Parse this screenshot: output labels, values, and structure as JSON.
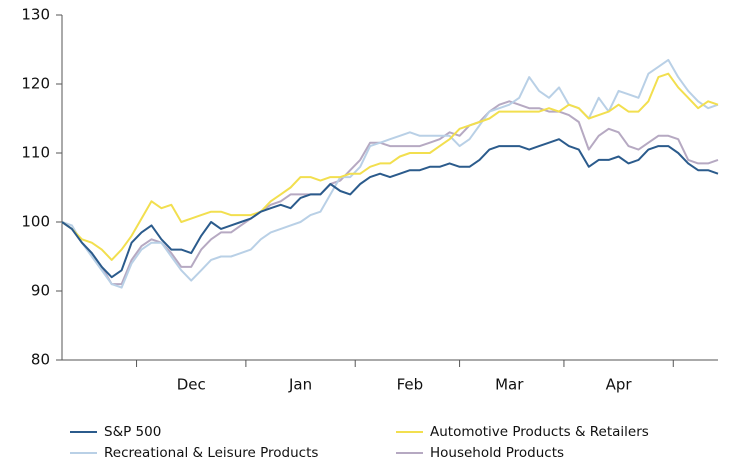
{
  "chart_data": {
    "type": "line",
    "categories": [
      null,
      null,
      null,
      null,
      null,
      null,
      null,
      null,
      null,
      null,
      null,
      null,
      null,
      "Dec",
      null,
      null,
      null,
      null,
      null,
      null,
      null,
      null,
      null,
      null,
      "Jan",
      null,
      null,
      null,
      null,
      null,
      null,
      null,
      null,
      null,
      null,
      "Feb",
      null,
      null,
      null,
      null,
      null,
      null,
      null,
      null,
      null,
      "Mar",
      null,
      null,
      null,
      null,
      null,
      null,
      null,
      null,
      null,
      null,
      "Apr",
      null,
      null,
      null,
      null,
      null,
      null,
      null,
      null,
      null,
      null
    ],
    "ylim": [
      80,
      130
    ],
    "yticks": [
      80,
      90,
      100,
      110,
      120,
      130
    ],
    "grid": false,
    "series": [
      {
        "name": "S&P 500",
        "color": "#2b5b8c",
        "values": [
          100,
          99,
          97,
          95.5,
          93.5,
          92,
          93,
          97,
          98.5,
          99.5,
          97.5,
          96,
          96,
          95.5,
          98,
          100,
          99,
          99.5,
          100,
          100.5,
          101.5,
          102,
          102.5,
          102,
          103.5,
          104,
          104,
          105.5,
          104.5,
          104,
          105.5,
          106.5,
          107,
          106.5,
          107,
          107.5,
          107.5,
          108,
          108,
          108.5,
          108,
          108,
          109,
          110.5,
          111,
          111,
          111,
          110.5,
          111,
          111.5,
          112,
          111,
          110.5,
          108,
          109,
          109,
          109.5,
          108.5,
          109,
          110.5,
          111,
          111,
          110,
          108.5,
          107.5,
          107.5,
          107
        ]
      },
      {
        "name": "Automotive Products & Retailers",
        "color": "#f2df4f",
        "values": [
          100,
          99,
          97.5,
          97,
          96,
          94.5,
          96,
          98,
          100.5,
          103,
          102,
          102.5,
          100,
          100.5,
          101,
          101.5,
          101.5,
          101,
          101,
          101,
          101.5,
          103,
          104,
          105,
          106.5,
          106.5,
          106,
          106.5,
          106.5,
          107,
          107,
          108,
          108.5,
          108.5,
          109.5,
          110,
          110,
          110,
          111,
          112,
          113.5,
          114,
          114.5,
          115,
          116,
          116,
          116,
          116,
          116,
          116.5,
          116,
          117,
          116.5,
          115,
          115.5,
          116,
          117,
          116,
          116,
          117.5,
          121,
          121.5,
          119.5,
          118,
          116.5,
          117.5,
          117
        ]
      },
      {
        "name": "Recreational & Leisure Products",
        "color": "#b9d0e6",
        "values": [
          100,
          99.5,
          97,
          95,
          93,
          91,
          90.5,
          94,
          96,
          97,
          97,
          95,
          93,
          91.5,
          93,
          94.5,
          95,
          95,
          95.5,
          96,
          97.5,
          98.5,
          99,
          99.5,
          100,
          101,
          101.5,
          104,
          106.5,
          106.5,
          108,
          111,
          111.5,
          112,
          112.5,
          113,
          112.5,
          112.5,
          112.5,
          112.5,
          111,
          112,
          114,
          116,
          116.5,
          117,
          118,
          121,
          119,
          118,
          119.5,
          117,
          116.5,
          115,
          118,
          116,
          119,
          118.5,
          118,
          121.5,
          122.5,
          123.5,
          121,
          119,
          117.5,
          116.5,
          117
        ]
      },
      {
        "name": "Household Products",
        "color": "#b6a9c2",
        "values": [
          100,
          99,
          97,
          95.5,
          93.5,
          91,
          91,
          94.5,
          96.5,
          97.5,
          97,
          95.5,
          93.5,
          93.5,
          96,
          97.5,
          98.5,
          98.5,
          99.5,
          100.5,
          101.5,
          102.5,
          103,
          104,
          104,
          104,
          104,
          105.5,
          106,
          107.5,
          109,
          111.5,
          111.5,
          111,
          111,
          111,
          111,
          111.5,
          112,
          113,
          112.5,
          114,
          114.5,
          116,
          117,
          117.5,
          117,
          116.5,
          116.5,
          116,
          116,
          115.5,
          114.5,
          110.5,
          112.5,
          113.5,
          113,
          111,
          110.5,
          111.5,
          112.5,
          112.5,
          112,
          109,
          108.5,
          108.5,
          109
        ]
      }
    ]
  }
}
